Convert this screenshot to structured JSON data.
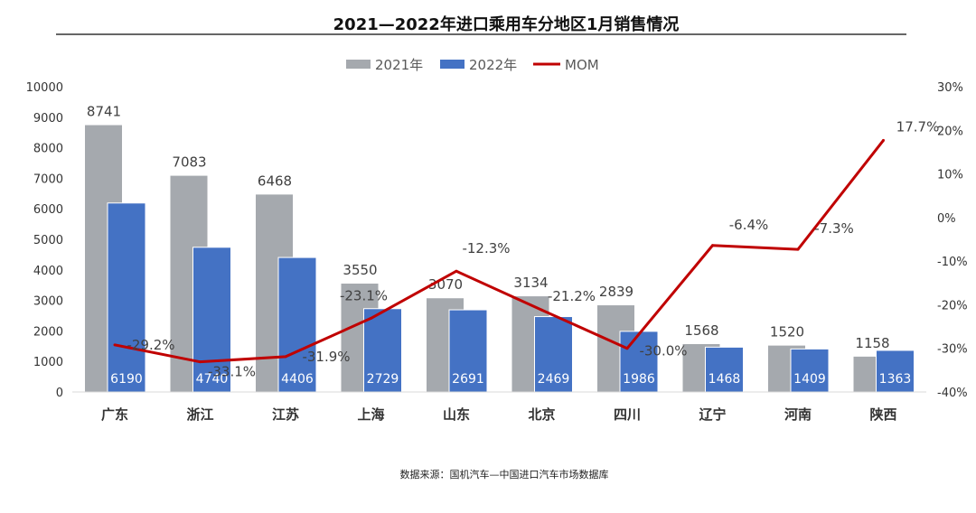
{
  "chart_data": {
    "type": "bar",
    "title": "2021—2022年进口乘用车分地区1月销售情况",
    "categories": [
      "广东",
      "浙江",
      "江苏",
      "上海",
      "山东",
      "北京",
      "四川",
      "辽宁",
      "河南",
      "陕西"
    ],
    "series": [
      {
        "name": "2021年",
        "type": "bar",
        "axis": "left",
        "color": "#A5A9AE",
        "values": [
          8741,
          7083,
          6468,
          3550,
          3070,
          3134,
          2839,
          1568,
          1520,
          1158
        ]
      },
      {
        "name": "2022年",
        "type": "bar",
        "axis": "left",
        "color": "#4472C4",
        "values": [
          6190,
          4740,
          4406,
          2729,
          2691,
          2469,
          1986,
          1468,
          1409,
          1363
        ]
      },
      {
        "name": "MOM",
        "type": "line",
        "axis": "right",
        "color": "#C00000",
        "values": [
          -29.2,
          -33.1,
          -31.9,
          -23.1,
          -12.3,
          -21.2,
          -30.0,
          -6.4,
          -7.3,
          17.7
        ],
        "labels": [
          "-29.2%",
          "-33.1%",
          "-31.9%",
          "-23.1%",
          "-12.3%",
          "-21.2%",
          "-30.0%",
          "-6.4%",
          "-7.3%",
          "17.7%"
        ]
      }
    ],
    "ylim": [
      0,
      10000
    ],
    "yticks": [
      "0",
      "1000",
      "2000",
      "3000",
      "4000",
      "5000",
      "6000",
      "7000",
      "8000",
      "9000",
      "10000"
    ],
    "y2lim": [
      -40,
      30
    ],
    "y2ticks": [
      "-40%",
      "-30%",
      "-20%",
      "-10%",
      "0%",
      "10%",
      "20%",
      "30%"
    ],
    "legend_position": "top-center",
    "grid": false
  },
  "source": "数据来源：国机汽车—中国进口汽车市场数据库"
}
